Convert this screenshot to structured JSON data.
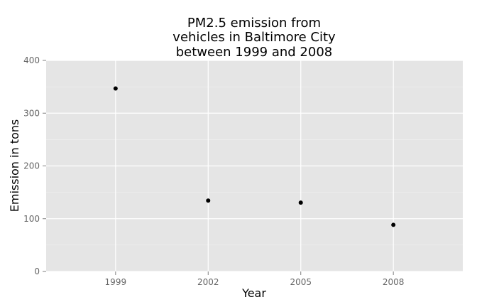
{
  "chart_data": {
    "type": "scatter",
    "title": [
      "PM2.5 emission from",
      "vehicles in Baltimore City",
      "between 1999 and 2008"
    ],
    "xlabel": "Year",
    "ylabel": "Emission in tons",
    "x": [
      "1999",
      "2002",
      "2005",
      "2008"
    ],
    "y": [
      346.8,
      134.3,
      130.4,
      88.3
    ],
    "ylim": [
      0,
      400
    ],
    "yticks": [
      "0",
      "100",
      "200",
      "300",
      "400"
    ],
    "grid": true,
    "legend": "none",
    "colors": {
      "panel": "#e5e5e5",
      "point": "#000000"
    }
  }
}
